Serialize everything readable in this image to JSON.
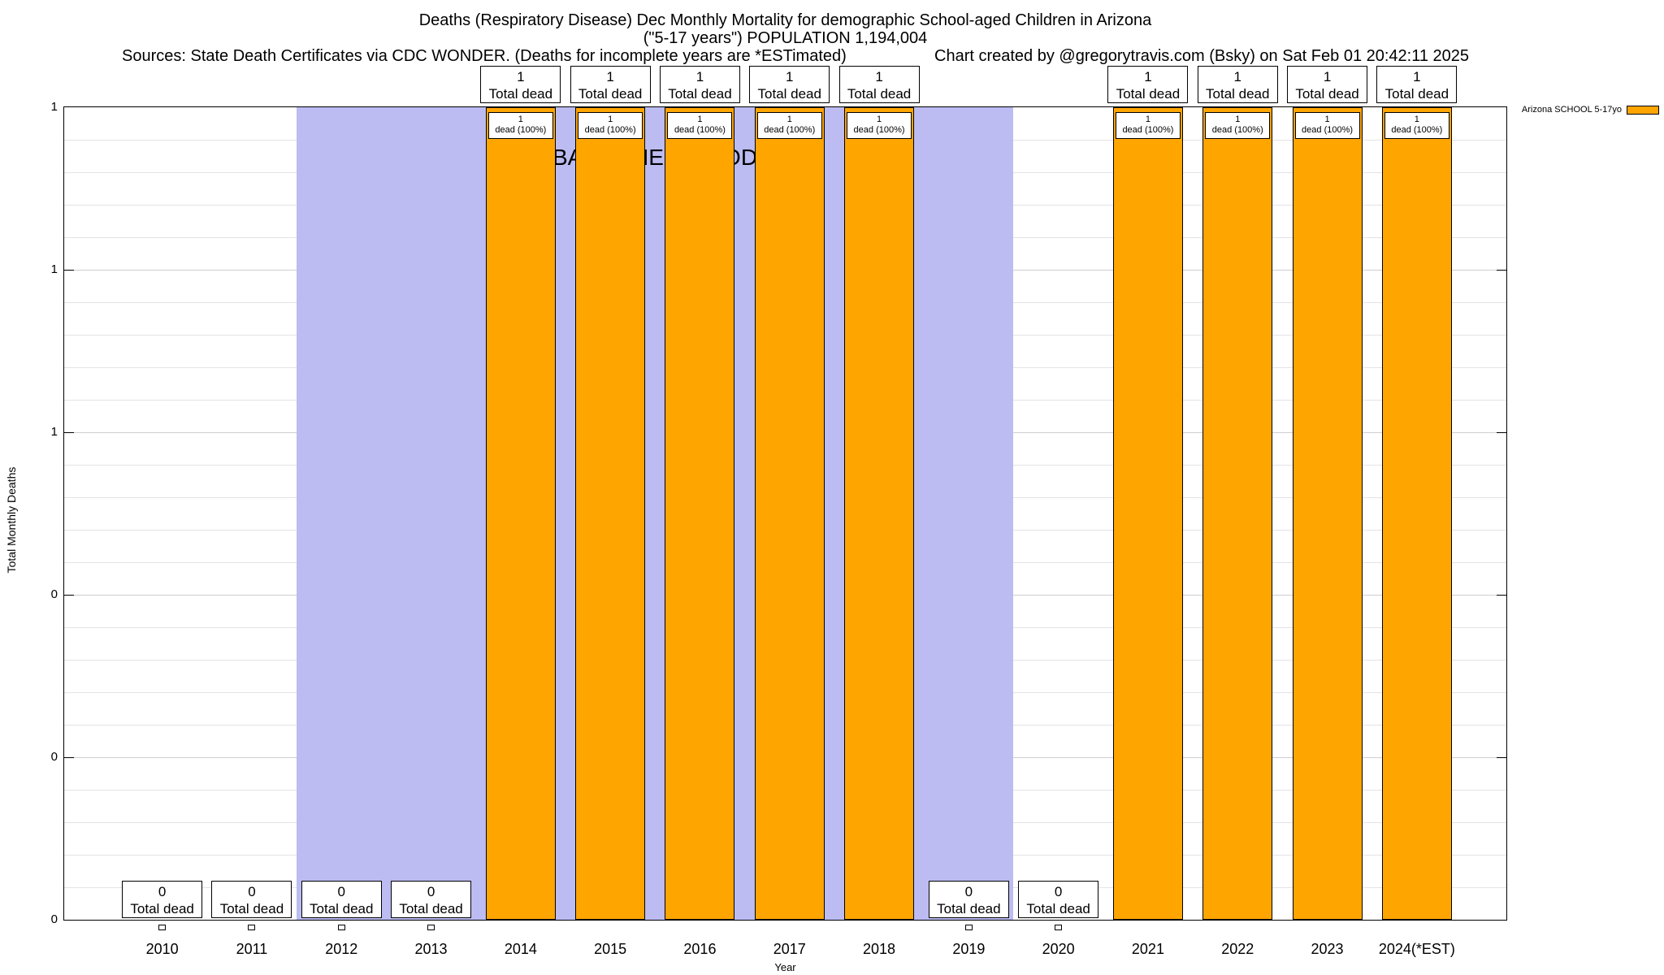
{
  "header": {
    "title_line1": "Deaths (Respiratory Disease) Dec Monthly Mortality for demographic School-aged Children in Arizona",
    "title_line2": "(\"5-17 years\") POPULATION 1,194,004",
    "sources": "Sources: State Death Certificates via CDC WONDER. (Deaths for incomplete years are *ESTimated)",
    "credit": "Chart created by @gregorytravis.com (Bsky) on Sat Feb 01 20:42:11 2025"
  },
  "legend": {
    "label": "Arizona SCHOOL 5-17yo",
    "swatch_color": "#FFA500"
  },
  "chart_data": {
    "type": "bar",
    "title": "Deaths (Respiratory Disease) Dec Monthly Mortality for demographic School-aged Children in Arizona",
    "xlabel": "Year",
    "ylabel": "Total Monthly Deaths",
    "ylim": [
      0,
      1
    ],
    "grid": true,
    "legend_position": "top-right-outside",
    "ytick_labels_top_to_bottom": [
      "1",
      "1",
      "1",
      "0",
      "0",
      "0"
    ],
    "categories": [
      "2010",
      "2011",
      "2012",
      "2013",
      "2014",
      "2015",
      "2016",
      "2017",
      "2018",
      "2019",
      "2020",
      "2021",
      "2022",
      "2023",
      "2024(*EST)"
    ],
    "values": [
      0,
      0,
      0,
      0,
      1,
      1,
      1,
      1,
      1,
      0,
      0,
      1,
      1,
      1,
      1
    ],
    "series_name": "Arizona SCHOOL 5-17yo",
    "bar_color": "#FFA500",
    "annotations": {
      "total_dead": "Total dead",
      "dead_pct": "dead (100%)",
      "baseline": {
        "label": "BASELINE PERIOD",
        "from": "2012",
        "to": "2019",
        "color": "#BCBCF2"
      }
    }
  }
}
